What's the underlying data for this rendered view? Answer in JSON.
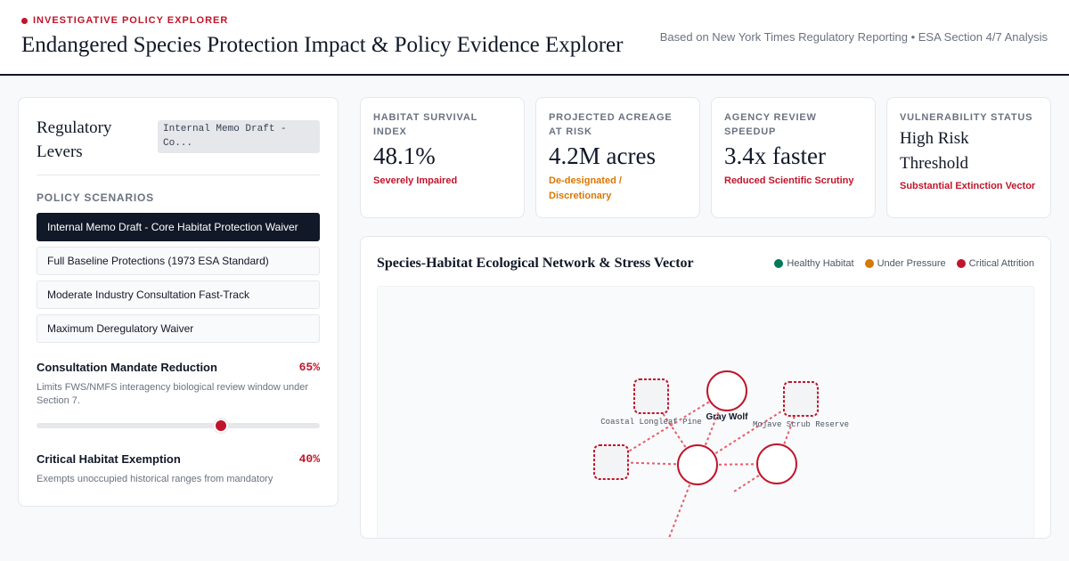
{
  "header": {
    "eyebrow": "INVESTIGATIVE POLICY EXPLORER",
    "title": "Endangered Species Protection Impact & Policy Evidence Explorer",
    "source": "Based on New York Times Regulatory Reporting • ESA Section 4/7 Analysis"
  },
  "levers": {
    "title": "Regulatory Levers",
    "active_chip": "Internal Memo Draft - Co...",
    "scenarios_label": "POLICY SCENARIOS",
    "scenarios": [
      {
        "label": "Internal Memo Draft - Core Habitat Protection Waiver",
        "active": true
      },
      {
        "label": "Full Baseline Protections (1973 ESA Standard)",
        "active": false
      },
      {
        "label": "Moderate Industry Consultation Fast-Track",
        "active": false
      },
      {
        "label": "Maximum Deregulatory Waiver",
        "active": false
      }
    ],
    "consultation": {
      "label": "Consultation Mandate Reduction",
      "value_text": "65%",
      "value": 0.65,
      "desc": "Limits FWS/NMFS interagency biological review window under Section 7."
    },
    "habitat": {
      "label": "Critical Habitat Exemption",
      "value_text": "40%",
      "value": 0.4,
      "desc": "Exempts unoccupied historical ranges from mandatory"
    }
  },
  "metrics": [
    {
      "label": "HABITAT SURVIVAL INDEX",
      "value": "48.1%",
      "status": "Severely Impaired",
      "status_color": "#c0152b"
    },
    {
      "label": "PROJECTED ACREAGE AT RISK",
      "value": "4.2M acres",
      "status": "De-designated / Discretionary",
      "status_color": "#d97706"
    },
    {
      "label": "AGENCY REVIEW SPEEDUP",
      "value": "3.4x faster",
      "status": "Reduced Scientific Scrutiny",
      "status_color": "#c0152b"
    },
    {
      "label": "VULNERABILITY STATUS",
      "value": "High Risk Threshold",
      "status": "Substantial Extinction Vector",
      "status_color": "#c0152b"
    }
  ],
  "network": {
    "title": "Species-Habitat Ecological Network & Stress Vector",
    "legend": [
      {
        "label": "Healthy Habitat",
        "color": "#047857"
      },
      {
        "label": "Under Pressure",
        "color": "#d97706"
      },
      {
        "label": "Critical Attrition",
        "color": "#c0152b"
      }
    ],
    "nodes": {
      "gray_wolf": "Gray Wolf",
      "longleaf": "Coastal Longleaf Pine",
      "mojave": "Mojave Scrub Reserve"
    },
    "stroke_color": "#c0152b",
    "edge_color": "#e85d6a"
  }
}
